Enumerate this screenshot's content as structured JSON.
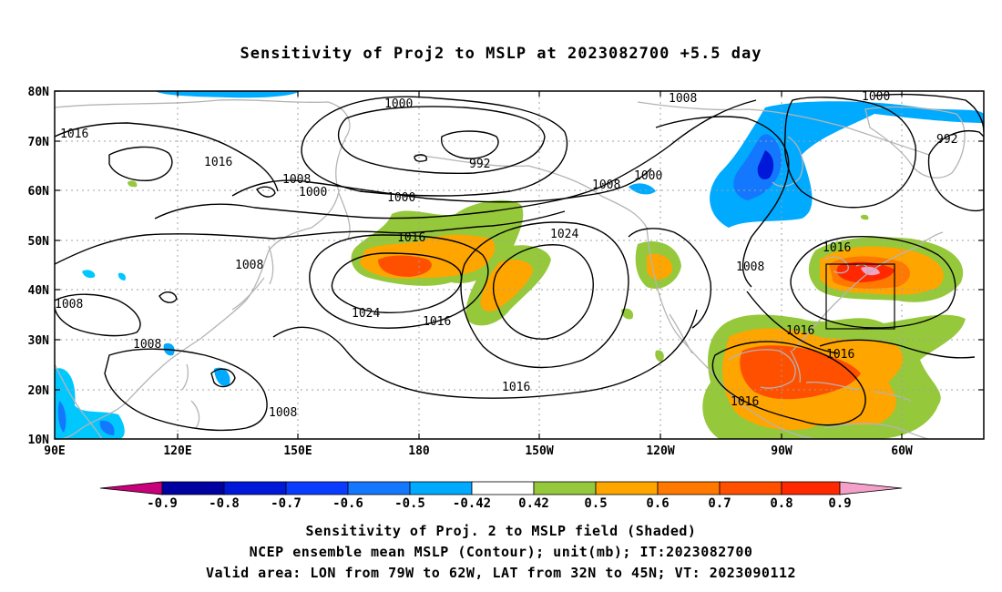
{
  "title": "Sensitivity of Proj2 to MSLP at 2023082700 +5.5 day",
  "lat_labels": [
    "80N",
    "70N",
    "60N",
    "50N",
    "40N",
    "30N",
    "20N",
    "10N"
  ],
  "lon_labels": [
    "90E",
    "120E",
    "150E",
    "180",
    "150W",
    "120W",
    "90W",
    "60W"
  ],
  "contour_labels": {
    "c1016": "1016",
    "c1000": "1000",
    "c992": "992",
    "c1008": "1008",
    "c1024": "1024"
  },
  "colorbar": {
    "labels": [
      "-0.9",
      "-0.8",
      "-0.7",
      "-0.6",
      "-0.5",
      "-0.42",
      "0.42",
      "0.5",
      "0.6",
      "0.7",
      "0.8",
      "0.9"
    ],
    "colors": {
      "under": "#c8007a",
      "n09": "#0000a0",
      "n08": "#0018d8",
      "n07": "#0a3cff",
      "n06": "#1478ff",
      "n05": "#00aaff",
      "n042": "#00c8ff",
      "neutral": "#ffffff",
      "p042": "#96c83c",
      "p05": "#ffa500",
      "p06": "#ff7800",
      "p07": "#ff5000",
      "p08": "#ff2800",
      "p09": "#ff0000",
      "over": "#f5a0c8"
    }
  },
  "captions": [
    "Sensitivity of Proj. 2 to MSLP field (Shaded)",
    "NCEP ensemble mean MSLP (Contour); unit(mb); IT:2023082700",
    "Valid area: LON from 79W to 62W, LAT from 32N to 45N; VT: 2023090112"
  ]
}
